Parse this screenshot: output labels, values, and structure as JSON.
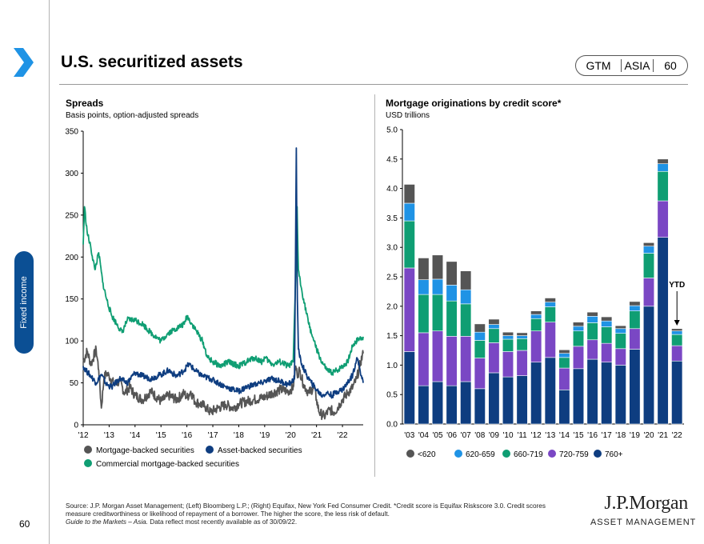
{
  "page": {
    "title": "U.S. securitized assets",
    "badge": [
      "GTM",
      "ASIA",
      "60"
    ],
    "section_tab": "Fixed income",
    "page_number": "60"
  },
  "source": {
    "line1": "Source: J.P. Morgan Asset Management; (Left) Bloomberg L.P.; (Right) Equifax, New York Fed Consumer Credit. *Credit score is Equifax Riskscore 3.0. Credit scores",
    "line2": "measure creditworthiness or likelihood of repayment of a borrower. The higher the score, the less risk of default.",
    "line3_italic": "Guide to the Markets – Asia.",
    "line3_rest": " Data reflect most recently available as of 30/09/22."
  },
  "logo": {
    "name": "J.P.Morgan",
    "sub": "ASSET MANAGEMENT"
  },
  "colors": {
    "mbs": "#555555",
    "abs": "#0e3d80",
    "cmbs": "#0f9e73",
    "lt620": "#555555",
    "s620_659": "#1f93e5",
    "s660_719": "#0f9e73",
    "s720_759": "#7a47c4",
    "s760p": "#0e3d80",
    "accent": "#0b4f94"
  },
  "chart_data": [
    {
      "type": "line",
      "title": "Spreads",
      "subtitle": "Basis points, option-adjusted spreads",
      "x_ticks": [
        "'12",
        "'13",
        "'14",
        "'15",
        "'16",
        "'17",
        "'18",
        "'19",
        "'20",
        "'21",
        "'22"
      ],
      "y_ticks": [
        0,
        50,
        100,
        150,
        200,
        250,
        300,
        350
      ],
      "xlim": [
        2012.0,
        2022.8
      ],
      "ylim": [
        0,
        350
      ],
      "legend": [
        "Mortgage-backed securities",
        "Asset-backed securities",
        "Commercial mortgage-backed securities"
      ],
      "series": [
        {
          "name": "Mortgage-backed securities",
          "x": [
            2012.0,
            2012.15,
            2012.3,
            2012.5,
            2012.6,
            2012.7,
            2012.8,
            2012.9,
            2013.0,
            2013.2,
            2013.4,
            2013.6,
            2013.8,
            2014.0,
            2014.3,
            2014.6,
            2015.0,
            2015.3,
            2015.6,
            2015.9,
            2016.0,
            2016.15,
            2016.3,
            2016.5,
            2016.7,
            2016.9,
            2017.2,
            2017.5,
            2017.8,
            2018.0,
            2018.3,
            2018.6,
            2018.9,
            2019.0,
            2019.3,
            2019.6,
            2019.9,
            2020.0,
            2020.1,
            2020.2,
            2020.25,
            2020.35,
            2020.5,
            2020.7,
            2020.9,
            2021.0,
            2021.1,
            2021.3,
            2021.5,
            2021.7,
            2021.9,
            2022.0,
            2022.2,
            2022.4,
            2022.55,
            2022.7,
            2022.8
          ],
          "y": [
            75,
            88,
            72,
            90,
            65,
            20,
            55,
            62,
            58,
            48,
            52,
            38,
            45,
            35,
            30,
            40,
            28,
            35,
            30,
            38,
            32,
            40,
            28,
            25,
            22,
            15,
            20,
            24,
            20,
            25,
            28,
            30,
            32,
            33,
            38,
            42,
            40,
            42,
            45,
            70,
            60,
            65,
            48,
            38,
            45,
            30,
            15,
            10,
            18,
            15,
            25,
            30,
            38,
            45,
            55,
            75,
            85
          ]
        },
        {
          "name": "Asset-backed securities",
          "x": [
            2012.0,
            2012.1,
            2012.3,
            2012.5,
            2012.7,
            2012.9,
            2013.1,
            2013.4,
            2013.7,
            2014.0,
            2014.3,
            2014.6,
            2015.0,
            2015.3,
            2015.6,
            2015.9,
            2016.0,
            2016.1,
            2016.3,
            2016.6,
            2016.9,
            2017.2,
            2017.5,
            2017.8,
            2018.0,
            2018.3,
            2018.6,
            2018.9,
            2019.0,
            2019.3,
            2019.6,
            2019.9,
            2020.0,
            2020.15,
            2020.22,
            2020.26,
            2020.3,
            2020.4,
            2020.6,
            2020.8,
            2021.0,
            2021.2,
            2021.4,
            2021.6,
            2021.8,
            2022.0,
            2022.2,
            2022.4,
            2022.55,
            2022.65,
            2022.75,
            2022.8
          ],
          "y": [
            70,
            65,
            58,
            50,
            60,
            48,
            45,
            55,
            50,
            62,
            58,
            55,
            60,
            65,
            58,
            65,
            70,
            72,
            65,
            58,
            55,
            50,
            45,
            42,
            40,
            45,
            48,
            50,
            52,
            55,
            52,
            48,
            50,
            55,
            330,
            150,
            90,
            75,
            60,
            50,
            42,
            35,
            38,
            35,
            40,
            42,
            50,
            60,
            80,
            70,
            55,
            50
          ]
        },
        {
          "name": "Commercial mortgage-backed securities",
          "x": [
            2012.0,
            2012.05,
            2012.15,
            2012.3,
            2012.45,
            2012.6,
            2012.75,
            2012.9,
            2013.1,
            2013.3,
            2013.5,
            2013.7,
            2014.0,
            2014.3,
            2014.6,
            2015.0,
            2015.3,
            2015.6,
            2015.9,
            2016.0,
            2016.1,
            2016.3,
            2016.6,
            2016.8,
            2017.0,
            2017.3,
            2017.6,
            2018.0,
            2018.3,
            2018.6,
            2018.9,
            2019.0,
            2019.3,
            2019.6,
            2019.9,
            2020.0,
            2020.1,
            2020.2,
            2020.25,
            2020.3,
            2020.4,
            2020.5,
            2020.7,
            2020.9,
            2021.0,
            2021.2,
            2021.4,
            2021.6,
            2021.8,
            2022.0,
            2022.2,
            2022.4,
            2022.6,
            2022.8
          ],
          "y": [
            215,
            260,
            230,
            210,
            185,
            205,
            170,
            150,
            130,
            120,
            110,
            125,
            125,
            120,
            110,
            100,
            110,
            115,
            120,
            130,
            125,
            115,
            100,
            80,
            75,
            70,
            75,
            70,
            75,
            80,
            75,
            80,
            72,
            75,
            70,
            72,
            75,
            180,
            260,
            185,
            165,
            150,
            120,
            100,
            90,
            75,
            65,
            62,
            65,
            70,
            75,
            95,
            102,
            105
          ]
        }
      ]
    },
    {
      "type": "bar",
      "stacked": true,
      "title": "Mortgage originations by credit score*",
      "subtitle": "USD trillions",
      "categories": [
        "'03",
        "'04",
        "'05",
        "'06",
        "'07",
        "'08",
        "'09",
        "'10",
        "'11",
        "'12",
        "'13",
        "'14",
        "'15",
        "'16",
        "'17",
        "'18",
        "'19",
        "'20",
        "'21",
        "'22"
      ],
      "y_ticks": [
        "0.0",
        "0.5",
        "1.0",
        "1.5",
        "2.0",
        "2.5",
        "3.0",
        "3.5",
        "4.0",
        "4.5",
        "5.0"
      ],
      "ylim": [
        0,
        5.0
      ],
      "annotation": "YTD",
      "series": [
        {
          "name": "760+",
          "values": [
            1.23,
            0.65,
            0.72,
            0.65,
            0.72,
            0.6,
            0.87,
            0.8,
            0.82,
            1.05,
            1.13,
            0.58,
            0.94,
            1.1,
            1.05,
            1.0,
            1.27,
            2.0,
            3.17,
            1.07
          ]
        },
        {
          "name": "720-759",
          "values": [
            1.42,
            0.9,
            0.86,
            0.84,
            0.77,
            0.52,
            0.51,
            0.43,
            0.43,
            0.53,
            0.6,
            0.37,
            0.38,
            0.33,
            0.32,
            0.28,
            0.35,
            0.48,
            0.62,
            0.26
          ]
        },
        {
          "name": "660-719",
          "values": [
            0.8,
            0.65,
            0.62,
            0.6,
            0.55,
            0.3,
            0.24,
            0.21,
            0.2,
            0.21,
            0.26,
            0.18,
            0.26,
            0.29,
            0.28,
            0.26,
            0.3,
            0.42,
            0.5,
            0.19
          ]
        },
        {
          "name": "620-659",
          "values": [
            0.3,
            0.25,
            0.26,
            0.27,
            0.24,
            0.14,
            0.07,
            0.06,
            0.05,
            0.07,
            0.08,
            0.07,
            0.08,
            0.11,
            0.1,
            0.08,
            0.09,
            0.12,
            0.13,
            0.06
          ]
        },
        {
          "name": "<620",
          "values": [
            0.32,
            0.37,
            0.41,
            0.4,
            0.32,
            0.14,
            0.09,
            0.06,
            0.05,
            0.06,
            0.07,
            0.06,
            0.07,
            0.07,
            0.07,
            0.05,
            0.07,
            0.06,
            0.08,
            0.04
          ]
        }
      ],
      "legend": [
        "<620",
        "620-659",
        "660-719",
        "720-759",
        "760+"
      ]
    }
  ]
}
